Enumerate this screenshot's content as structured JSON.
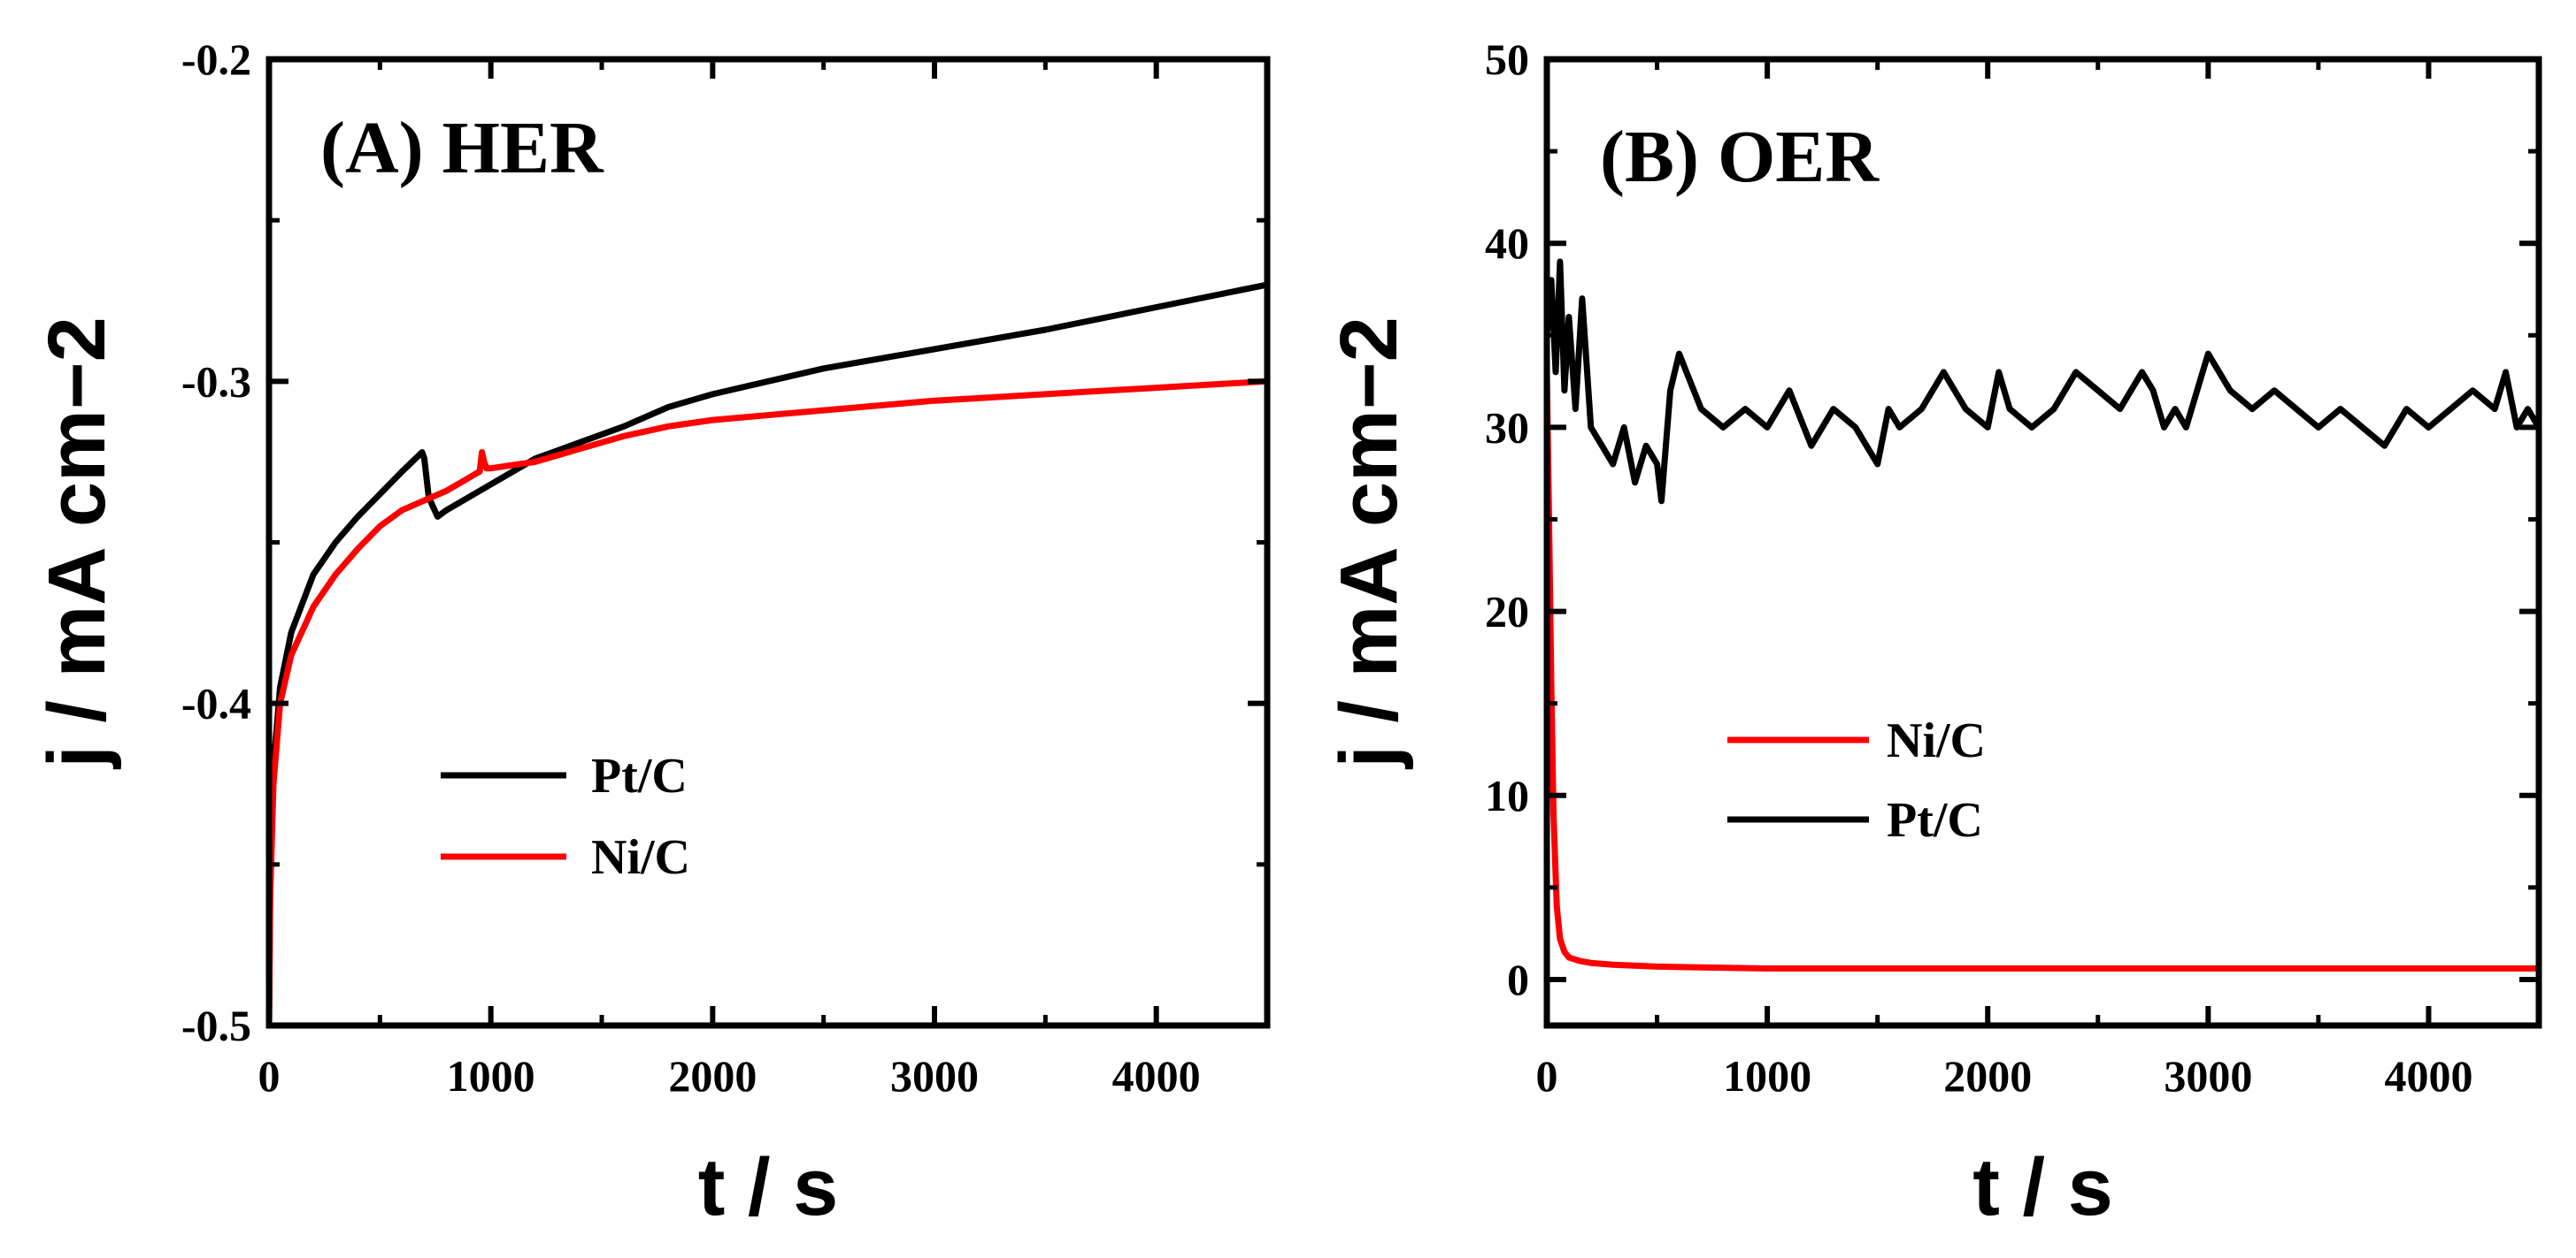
{
  "chart_data": [
    {
      "type": "line",
      "title": "(A) HER",
      "xlabel": "t / s",
      "ylabel": "j / mA cm−2",
      "xlim": [
        0,
        4500
      ],
      "ylim": [
        -0.5,
        -0.2
      ],
      "xticks": [
        "0",
        "1000",
        "2000",
        "3000",
        "4000"
      ],
      "yticks": [
        "-0.5",
        "-0.4",
        "-0.3",
        "-0.2"
      ],
      "legend": [
        "Pt/C",
        "Ni/C"
      ],
      "legend_location": "lower-center",
      "grid": false,
      "series": [
        {
          "name": "Pt/C",
          "color": "#000000",
          "x": [
            0,
            5,
            20,
            50,
            100,
            200,
            300,
            400,
            500,
            600,
            690,
            700,
            720,
            760,
            800,
            900,
            1000,
            1100,
            1200,
            1400,
            1600,
            1800,
            2000,
            2500,
            3000,
            3500,
            4000,
            4500
          ],
          "y": [
            -0.5,
            -0.455,
            -0.42,
            -0.395,
            -0.378,
            -0.36,
            -0.35,
            -0.342,
            -0.335,
            -0.328,
            -0.322,
            -0.324,
            -0.336,
            -0.342,
            -0.34,
            -0.336,
            -0.332,
            -0.328,
            -0.324,
            -0.319,
            -0.314,
            -0.308,
            -0.304,
            -0.296,
            -0.29,
            -0.284,
            -0.277,
            -0.27
          ]
        },
        {
          "name": "Ni/C",
          "color": "#ff0000",
          "x": [
            0,
            5,
            20,
            50,
            100,
            200,
            300,
            400,
            500,
            600,
            700,
            800,
            900,
            950,
            960,
            970,
            980,
            1000,
            1200,
            1400,
            1600,
            1800,
            2000,
            2500,
            3000,
            3500,
            4000,
            4500
          ],
          "y": [
            -0.5,
            -0.46,
            -0.425,
            -0.4,
            -0.385,
            -0.37,
            -0.36,
            -0.352,
            -0.345,
            -0.34,
            -0.337,
            -0.334,
            -0.33,
            -0.328,
            -0.322,
            -0.325,
            -0.327,
            -0.327,
            -0.325,
            -0.321,
            -0.317,
            -0.314,
            -0.312,
            -0.309,
            -0.306,
            -0.304,
            -0.302,
            -0.3
          ]
        }
      ]
    },
    {
      "type": "line",
      "title": "(B) OER",
      "xlabel": "t / s",
      "ylabel": "j / mA cm−2",
      "xlim": [
        0,
        4500
      ],
      "ylim": [
        -2.5,
        50
      ],
      "xticks": [
        "0",
        "1000",
        "2000",
        "3000",
        "4000"
      ],
      "yticks": [
        "0",
        "10",
        "20",
        "30",
        "40",
        "50"
      ],
      "legend": [
        "Ni/C",
        "Pt/C"
      ],
      "legend_location": "lower-center",
      "grid": false,
      "series": [
        {
          "name": "Ni/C",
          "color": "#ff0000",
          "x": [
            0,
            10,
            20,
            30,
            45,
            60,
            80,
            100,
            150,
            200,
            300,
            500,
            1000,
            2000,
            3000,
            4000,
            4500
          ],
          "y": [
            33,
            25,
            16,
            9,
            4,
            2.2,
            1.5,
            1.2,
            1.0,
            0.9,
            0.8,
            0.7,
            0.6,
            0.6,
            0.6,
            0.6,
            0.6
          ]
        },
        {
          "name": "Pt/C",
          "color": "#000000",
          "x": [
            0,
            20,
            40,
            60,
            80,
            100,
            130,
            160,
            200,
            250,
            300,
            350,
            400,
            450,
            500,
            520,
            560,
            600,
            700,
            800,
            900,
            1000,
            1100,
            1200,
            1300,
            1400,
            1450,
            1500,
            1550,
            1600,
            1700,
            1800,
            1900,
            2000,
            2050,
            2100,
            2200,
            2300,
            2400,
            2500,
            2600,
            2700,
            2750,
            2800,
            2850,
            2900,
            3000,
            3050,
            3100,
            3200,
            3300,
            3400,
            3500,
            3600,
            3700,
            3800,
            3900,
            4000,
            4100,
            4200,
            4300,
            4350,
            4400,
            4450,
            4500
          ],
          "y": [
            35,
            38,
            33,
            39,
            32,
            36,
            31,
            37,
            30,
            29,
            28,
            30,
            27,
            29,
            28,
            26,
            32,
            34,
            31,
            30,
            31,
            30,
            32,
            29,
            31,
            30,
            29,
            28,
            31,
            30,
            31,
            33,
            31,
            30,
            33,
            31,
            30,
            31,
            33,
            32,
            31,
            33,
            32,
            30,
            31,
            30,
            34,
            33,
            32,
            31,
            32,
            31,
            30,
            31,
            30,
            29,
            31,
            30,
            31,
            32,
            31,
            33,
            30,
            31,
            30
          ]
        }
      ]
    }
  ]
}
